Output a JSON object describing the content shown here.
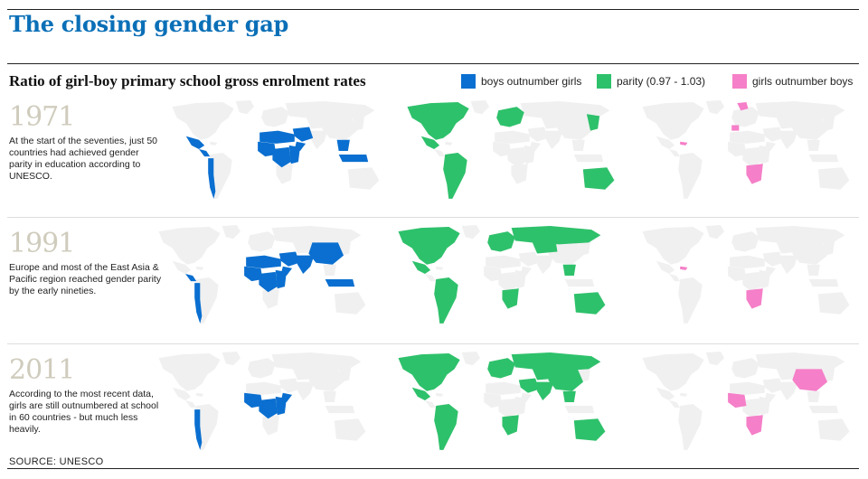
{
  "title": "The closing gender gap",
  "subtitle": "Ratio of girl-boy primary school gross enrolment rates",
  "legend": [
    {
      "label": "boys outnumber girls",
      "color": "#0a6fd0"
    },
    {
      "label": "parity (0.97 - 1.03)",
      "color": "#2ec16b"
    },
    {
      "label": "girls outnumber boys",
      "color": "#f57fc8"
    }
  ],
  "colors": {
    "base_land": "#f0f0f0",
    "boys": "#0a6fd0",
    "parity": "#2ec16b",
    "girls": "#f57fc8"
  },
  "panels": [
    {
      "year": "1971",
      "text": "At the start of the seventies, just 50 countries had achieved gender parity in education according to UNESCO.",
      "regions": {
        "boys": [
          "west-africa",
          "central-africa",
          "east-africa",
          "horn-of-africa",
          "north-africa",
          "middle-east",
          "mexico",
          "central-america",
          "andes",
          "southeast-asia",
          "indonesia"
        ],
        "parity": [
          "north-america",
          "mexico",
          "south-america",
          "europe",
          "east-asia",
          "australia"
        ],
        "girls": [
          "iberia",
          "northern-europe",
          "caribbean",
          "southern-africa"
        ]
      }
    },
    {
      "year": "1991",
      "text": "Europe and most of the East Asia & Pacific region reached gender parity by the early nineties.",
      "regions": {
        "boys": [
          "west-africa",
          "central-africa",
          "east-africa",
          "horn-of-africa",
          "north-africa",
          "middle-east",
          "south-asia",
          "china",
          "central-america",
          "andes",
          "indonesia"
        ],
        "parity": [
          "north-america",
          "mexico",
          "south-america",
          "europe",
          "russia",
          "central-asia",
          "southeast-asia",
          "australia",
          "southern-africa"
        ],
        "girls": [
          "caribbean",
          "southern-africa"
        ]
      }
    },
    {
      "year": "2011",
      "text": "According to the most recent data, girls are still outnumbered at school in 60 countries - but much less heavily.",
      "regions": {
        "boys": [
          "west-africa",
          "central-africa",
          "east-africa",
          "horn-of-africa",
          "andes"
        ],
        "parity": [
          "north-america",
          "mexico",
          "south-america",
          "europe",
          "russia",
          "middle-east",
          "central-asia",
          "south-asia",
          "china",
          "southeast-asia",
          "australia",
          "southern-africa"
        ],
        "girls": [
          "china",
          "west-africa",
          "southern-africa"
        ]
      }
    }
  ],
  "source": "SOURCE: UNESCO"
}
